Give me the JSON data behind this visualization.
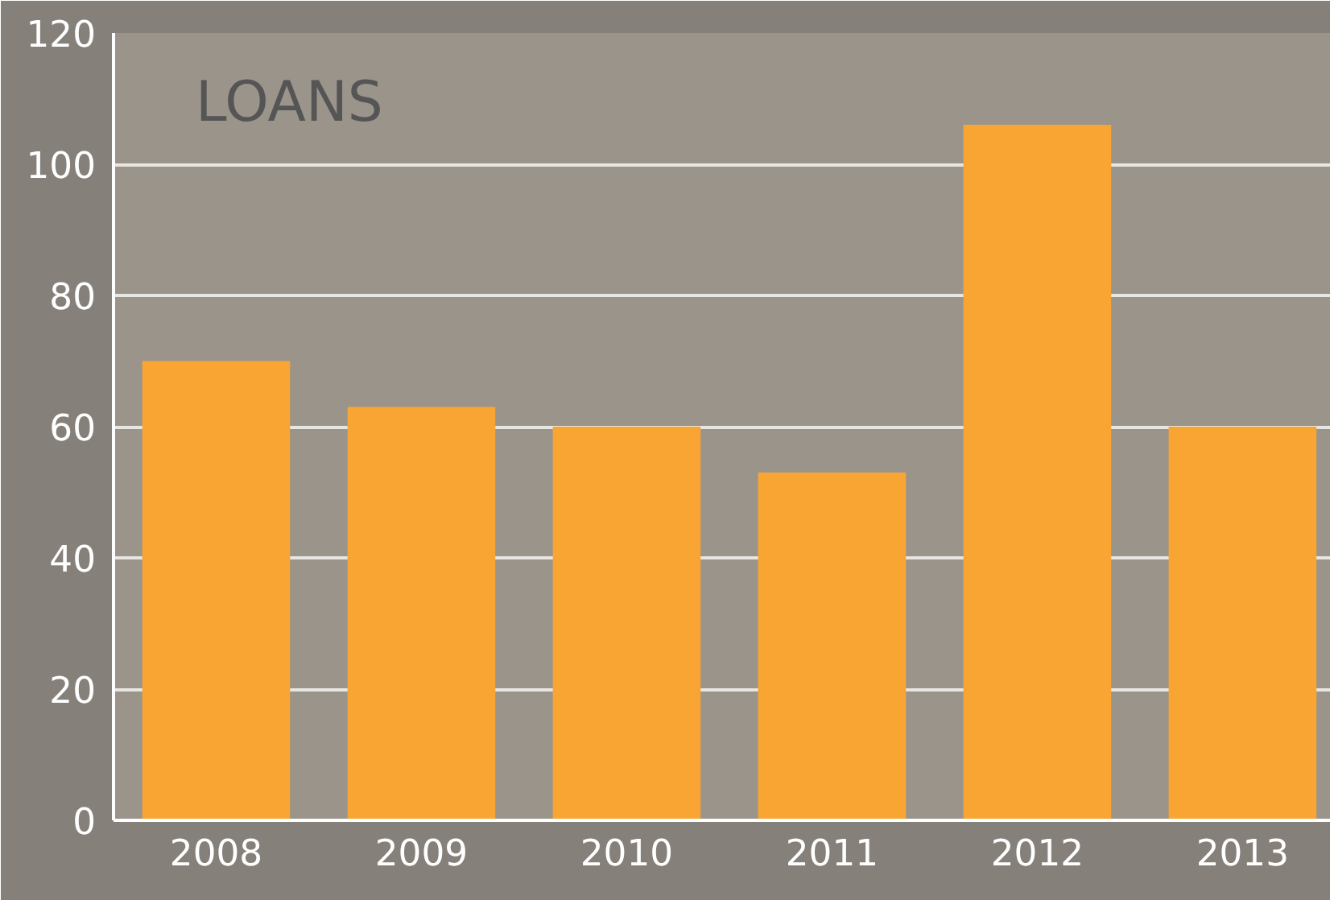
{
  "chart_data": {
    "type": "bar",
    "title": "LOANS",
    "categories": [
      "2008",
      "2009",
      "2010",
      "2011",
      "2012",
      "2013"
    ],
    "values": [
      70,
      63,
      60,
      53,
      106,
      60
    ],
    "color": "#f9a533",
    "ylim": [
      0,
      120
    ],
    "yticks": [
      0,
      20,
      40,
      60,
      80,
      100,
      120
    ],
    "grid": "y"
  }
}
